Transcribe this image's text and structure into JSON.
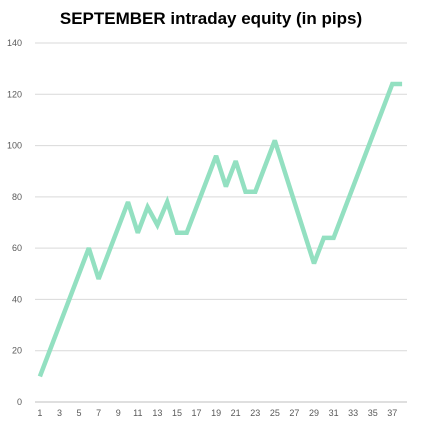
{
  "chart_data": {
    "type": "line",
    "title": "SEPTEMBER  intraday equity (in pips)",
    "xlabel": "",
    "ylabel": "",
    "ylim": [
      0,
      140
    ],
    "xlim": [
      1,
      38
    ],
    "y_ticks": [
      0,
      20,
      40,
      60,
      80,
      100,
      120,
      140
    ],
    "x_ticks": [
      1,
      3,
      5,
      7,
      9,
      11,
      13,
      15,
      17,
      19,
      21,
      23,
      25,
      27,
      29,
      31,
      33,
      35,
      37
    ],
    "grid": "horizontal",
    "legend": "none",
    "colors": {
      "line": "#93e0c1",
      "grid": "#d9d9d9",
      "tick_text": "#595959"
    },
    "series": [
      {
        "x": [
          1,
          6,
          7,
          10,
          11,
          12,
          13,
          14,
          15,
          16,
          19,
          20,
          21,
          22,
          23,
          25,
          29,
          30,
          31,
          37,
          38
        ],
        "values": [
          10,
          60,
          48,
          78,
          66,
          76,
          69,
          78,
          66,
          66,
          96,
          84,
          94,
          82,
          82,
          102,
          54,
          64,
          64,
          124,
          124
        ]
      }
    ]
  }
}
